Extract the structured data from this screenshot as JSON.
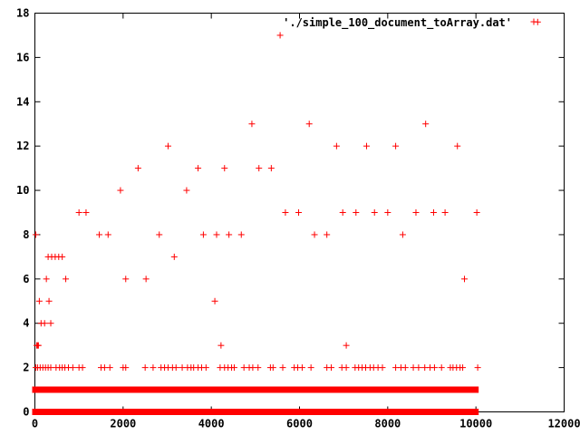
{
  "chart_data": {
    "type": "scatter",
    "title": "",
    "xlabel": "",
    "ylabel": "",
    "xlim": [
      0,
      12000
    ],
    "ylim": [
      0,
      18
    ],
    "x_ticks": [
      0,
      2000,
      4000,
      6000,
      8000,
      10000,
      12000
    ],
    "y_ticks": [
      0,
      2,
      4,
      6,
      8,
      10,
      12,
      14,
      16,
      18
    ],
    "grid": false,
    "legend_position": "top-right",
    "marker": "plus",
    "color": "#ff0000",
    "series": [
      {
        "name": "'./simple_100_document_toArray.dat'",
        "dense_bands": [
          {
            "y": 0,
            "x_range": [
              0,
              10000
            ]
          },
          {
            "y": 1,
            "x_range": [
              0,
              10000
            ]
          }
        ],
        "points": [
          [
            20,
            8
          ],
          [
            40,
            3
          ],
          [
            60,
            3
          ],
          [
            80,
            3
          ],
          [
            100,
            5
          ],
          [
            140,
            4
          ],
          [
            220,
            4
          ],
          [
            260,
            6
          ],
          [
            300,
            7
          ],
          [
            320,
            5
          ],
          [
            360,
            4
          ],
          [
            380,
            7
          ],
          [
            460,
            7
          ],
          [
            540,
            7
          ],
          [
            620,
            7
          ],
          [
            700,
            6
          ],
          [
            1000,
            9
          ],
          [
            1160,
            9
          ],
          [
            1460,
            8
          ],
          [
            1660,
            8
          ],
          [
            1940,
            10
          ],
          [
            2060,
            6
          ],
          [
            2340,
            11
          ],
          [
            2520,
            6
          ],
          [
            2820,
            8
          ],
          [
            3020,
            12
          ],
          [
            3160,
            7
          ],
          [
            3440,
            10
          ],
          [
            3700,
            11
          ],
          [
            3820,
            8
          ],
          [
            4080,
            5
          ],
          [
            4120,
            8
          ],
          [
            4220,
            3
          ],
          [
            4300,
            11
          ],
          [
            4400,
            8
          ],
          [
            4680,
            8
          ],
          [
            4920,
            13
          ],
          [
            5080,
            11
          ],
          [
            5360,
            11
          ],
          [
            5560,
            17
          ],
          [
            5680,
            9
          ],
          [
            5980,
            9
          ],
          [
            6220,
            13
          ],
          [
            6340,
            8
          ],
          [
            6620,
            8
          ],
          [
            6840,
            12
          ],
          [
            6980,
            9
          ],
          [
            7060,
            3
          ],
          [
            7280,
            9
          ],
          [
            7520,
            12
          ],
          [
            7700,
            9
          ],
          [
            8000,
            9
          ],
          [
            8180,
            12
          ],
          [
            8340,
            8
          ],
          [
            8640,
            9
          ],
          [
            8860,
            13
          ],
          [
            9040,
            9
          ],
          [
            9300,
            9
          ],
          [
            9580,
            12
          ],
          [
            9740,
            6
          ],
          [
            10020,
            9
          ],
          [
            11400,
            17.6
          ],
          [
            20,
            2
          ],
          [
            60,
            2
          ],
          [
            120,
            2
          ],
          [
            180,
            2
          ],
          [
            240,
            2
          ],
          [
            300,
            2
          ],
          [
            360,
            2
          ],
          [
            480,
            2
          ],
          [
            560,
            2
          ],
          [
            620,
            2
          ],
          [
            680,
            2
          ],
          [
            760,
            2
          ],
          [
            860,
            2
          ],
          [
            1000,
            2
          ],
          [
            1080,
            2
          ],
          [
            1500,
            2
          ],
          [
            1580,
            2
          ],
          [
            1700,
            2
          ],
          [
            2000,
            2
          ],
          [
            2060,
            2
          ],
          [
            2500,
            2
          ],
          [
            2680,
            2
          ],
          [
            2860,
            2
          ],
          [
            2940,
            2
          ],
          [
            3020,
            2
          ],
          [
            3120,
            2
          ],
          [
            3200,
            2
          ],
          [
            3340,
            2
          ],
          [
            3460,
            2
          ],
          [
            3540,
            2
          ],
          [
            3600,
            2
          ],
          [
            3700,
            2
          ],
          [
            3780,
            2
          ],
          [
            3880,
            2
          ],
          [
            4200,
            2
          ],
          [
            4300,
            2
          ],
          [
            4380,
            2
          ],
          [
            4460,
            2
          ],
          [
            4520,
            2
          ],
          [
            4740,
            2
          ],
          [
            4860,
            2
          ],
          [
            4940,
            2
          ],
          [
            5060,
            2
          ],
          [
            5340,
            2
          ],
          [
            5400,
            2
          ],
          [
            5620,
            2
          ],
          [
            5880,
            2
          ],
          [
            5960,
            2
          ],
          [
            6060,
            2
          ],
          [
            6260,
            2
          ],
          [
            6620,
            2
          ],
          [
            6720,
            2
          ],
          [
            6960,
            2
          ],
          [
            7060,
            2
          ],
          [
            7260,
            2
          ],
          [
            7340,
            2
          ],
          [
            7420,
            2
          ],
          [
            7500,
            2
          ],
          [
            7600,
            2
          ],
          [
            7680,
            2
          ],
          [
            7780,
            2
          ],
          [
            7880,
            2
          ],
          [
            8180,
            2
          ],
          [
            8300,
            2
          ],
          [
            8400,
            2
          ],
          [
            8580,
            2
          ],
          [
            8700,
            2
          ],
          [
            8840,
            2
          ],
          [
            8960,
            2
          ],
          [
            9060,
            2
          ],
          [
            9220,
            2
          ],
          [
            9420,
            2
          ],
          [
            9480,
            2
          ],
          [
            9560,
            2
          ],
          [
            9640,
            2
          ],
          [
            9700,
            2
          ],
          [
            10040,
            2
          ]
        ]
      }
    ]
  }
}
